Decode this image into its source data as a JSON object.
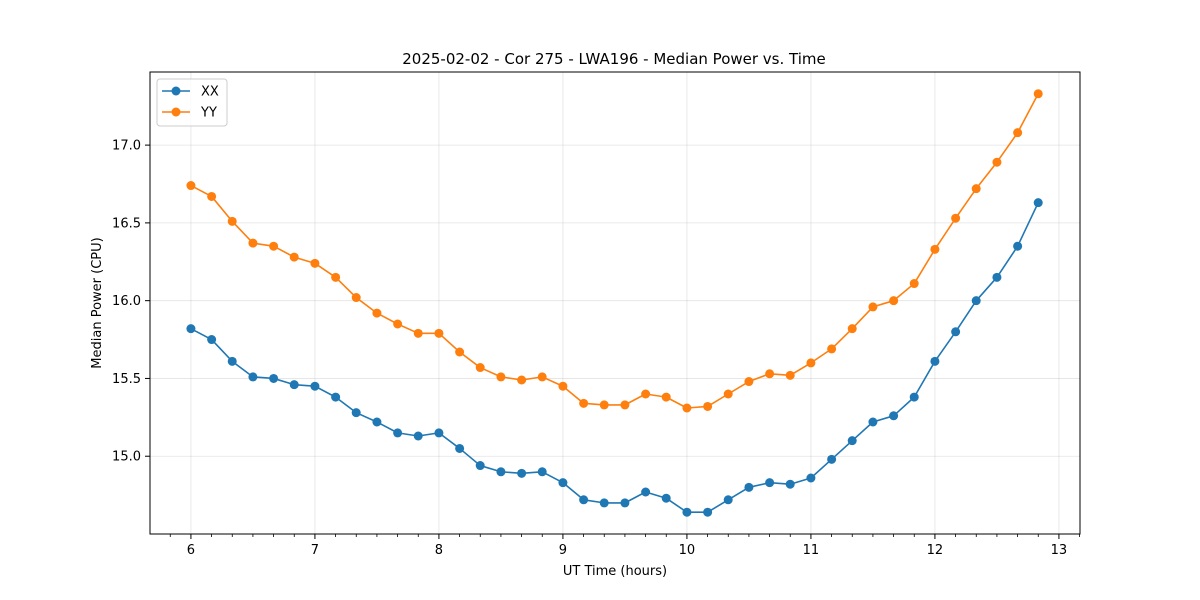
{
  "chart_data": {
    "type": "line",
    "title": "2025-02-02 - Cor 275 - LWA196 - Median Power vs. Time",
    "xlabel": "UT Time (hours)",
    "ylabel": "Median Power (CPU)",
    "xlim": [
      5.67,
      13.17
    ],
    "ylim": [
      14.5,
      17.47
    ],
    "xticks": [
      "6",
      "7",
      "8",
      "9",
      "10",
      "11",
      "12",
      "13"
    ],
    "xtick_values": [
      6,
      7,
      8,
      9,
      10,
      11,
      12,
      13
    ],
    "yticks": [
      "15.0",
      "15.5",
      "16.0",
      "16.5",
      "17.0"
    ],
    "ytick_values": [
      15.0,
      15.5,
      16.0,
      16.5,
      17.0
    ],
    "grid": true,
    "legend_position": "top-left",
    "x": [
      6.0,
      6.167,
      6.333,
      6.5,
      6.667,
      6.833,
      7.0,
      7.167,
      7.333,
      7.5,
      7.667,
      7.833,
      8.0,
      8.167,
      8.333,
      8.5,
      8.667,
      8.833,
      9.0,
      9.167,
      9.333,
      9.5,
      9.667,
      9.833,
      10.0,
      10.167,
      10.333,
      10.5,
      10.667,
      10.833,
      11.0,
      11.167,
      11.333,
      11.5,
      11.667,
      11.833,
      12.0,
      12.167,
      12.333,
      12.5,
      12.667,
      12.833
    ],
    "series": [
      {
        "name": "XX",
        "color": "#1f77b4",
        "values": [
          15.82,
          15.75,
          15.61,
          15.51,
          15.5,
          15.46,
          15.45,
          15.38,
          15.28,
          15.22,
          15.15,
          15.13,
          15.15,
          15.05,
          14.94,
          14.9,
          14.89,
          14.9,
          14.83,
          14.72,
          14.7,
          14.7,
          14.77,
          14.73,
          14.64,
          14.64,
          14.72,
          14.8,
          14.83,
          14.82,
          14.86,
          14.98,
          15.1,
          15.22,
          15.26,
          15.38,
          15.61,
          15.8,
          16.0,
          16.15,
          16.35,
          16.63
        ]
      },
      {
        "name": "YY",
        "color": "#ff7f0e",
        "values": [
          16.74,
          16.67,
          16.51,
          16.37,
          16.35,
          16.28,
          16.24,
          16.15,
          16.02,
          15.92,
          15.85,
          15.79,
          15.79,
          15.67,
          15.57,
          15.51,
          15.49,
          15.51,
          15.45,
          15.34,
          15.33,
          15.33,
          15.4,
          15.38,
          15.31,
          15.32,
          15.4,
          15.48,
          15.53,
          15.52,
          15.6,
          15.69,
          15.82,
          15.96,
          16.0,
          16.11,
          16.33,
          16.53,
          16.72,
          16.89,
          17.08,
          17.33
        ]
      }
    ]
  }
}
